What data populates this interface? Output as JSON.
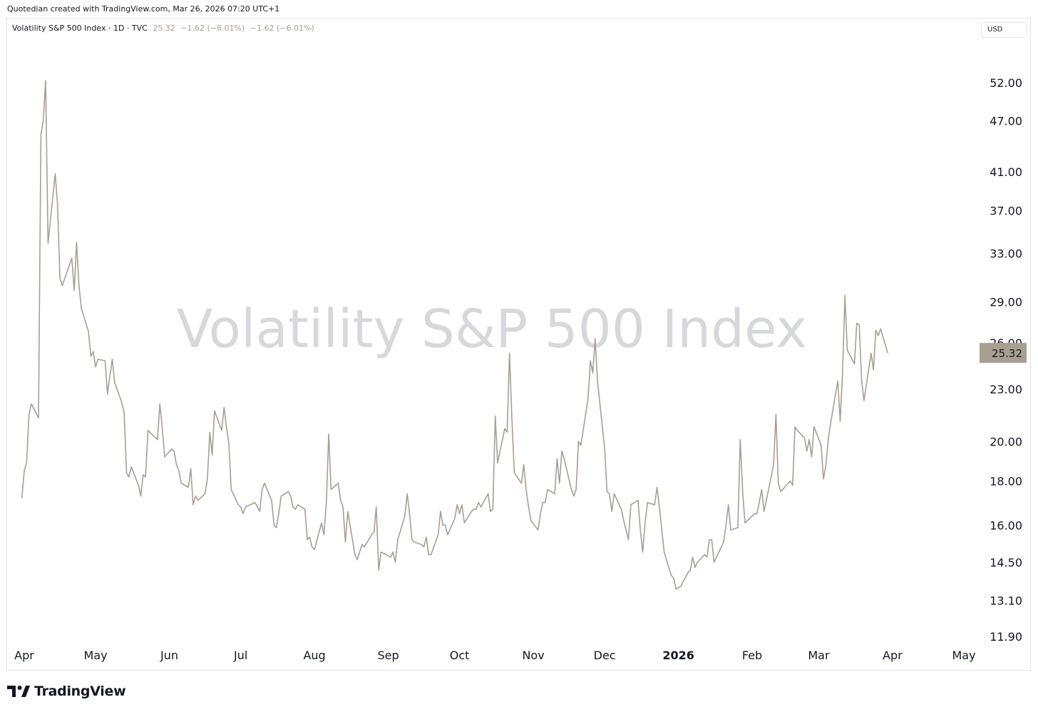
{
  "header": {
    "caption": "Quotedian created with TradingView.com, Mar 26, 2026 07:20 UTC+1"
  },
  "legend": {
    "symbol": "Volatility S&P 500 Index · 1D · TVC",
    "last": "25.32",
    "change1": "−1.62 (−6.01%)",
    "change2": "−1.62 (−6.01%)"
  },
  "currency": "USD",
  "watermark": "Volatility S&P 500 Index",
  "price_label": "25.32",
  "logo_text": "TradingView",
  "colors": {
    "line": "#a89e92",
    "price_tag": "#a89e92",
    "watermark": "#d6d8dc",
    "border": "#e0e3eb"
  },
  "chart_data": {
    "type": "line",
    "scale": "log",
    "grid": false,
    "y_ticks": [
      52.0,
      47.0,
      41.0,
      37.0,
      33.0,
      29.0,
      26.0,
      23.0,
      20.0,
      18.0,
      16.0,
      14.5,
      13.1,
      11.9
    ],
    "y_tick_labels": [
      "52.00",
      "47.00",
      "41.00",
      "37.00",
      "33.00",
      "29.00",
      "26.00",
      "23.00",
      "20.00",
      "18.00",
      "16.00",
      "14.50",
      "13.10",
      "11.90"
    ],
    "ylim": [
      11.7,
      60.0
    ],
    "x_labels": [
      "Apr",
      "May",
      "Jun",
      "Jul",
      "Aug",
      "Sep",
      "Oct",
      "Nov",
      "Dec",
      "2026",
      "Feb",
      "Mar",
      "Apr",
      "May"
    ],
    "x_label_bold": [
      false,
      false,
      false,
      false,
      false,
      false,
      false,
      false,
      false,
      true,
      false,
      false,
      false,
      false
    ],
    "x_label_dates": [
      "2025-04-01",
      "2025-05-01",
      "2025-06-01",
      "2025-07-01",
      "2025-08-01",
      "2025-09-01",
      "2025-10-01",
      "2025-11-01",
      "2025-12-01",
      "2026-01-01",
      "2026-02-01",
      "2026-03-01",
      "2026-04-01",
      "2026-05-01"
    ],
    "series": [
      {
        "values": [
          [
            "2025-03-31",
            17.2
          ],
          [
            "2025-04-01",
            18.5
          ],
          [
            "2025-04-02",
            18.9
          ],
          [
            "2025-04-03",
            21.5
          ],
          [
            "2025-04-04",
            22.1
          ],
          [
            "2025-04-07",
            21.3
          ],
          [
            "2025-04-08",
            45.3
          ],
          [
            "2025-04-09",
            47.0
          ],
          [
            "2025-04-10",
            52.3
          ],
          [
            "2025-04-11",
            33.9
          ],
          [
            "2025-04-14",
            40.8
          ],
          [
            "2025-04-15",
            37.6
          ],
          [
            "2025-04-16",
            30.9
          ],
          [
            "2025-04-17",
            30.3
          ],
          [
            "2025-04-21",
            32.6
          ],
          [
            "2025-04-22",
            29.9
          ],
          [
            "2025-04-23",
            34.0
          ],
          [
            "2025-04-24",
            30.4
          ],
          [
            "2025-04-25",
            28.5
          ],
          [
            "2025-04-28",
            26.8
          ],
          [
            "2025-04-29",
            25.1
          ],
          [
            "2025-04-30",
            25.4
          ],
          [
            "2025-05-01",
            24.4
          ],
          [
            "2025-05-02",
            24.9
          ],
          [
            "2025-05-05",
            24.8
          ],
          [
            "2025-05-06",
            22.7
          ],
          [
            "2025-05-07",
            23.8
          ],
          [
            "2025-05-08",
            24.9
          ],
          [
            "2025-05-09",
            23.4
          ],
          [
            "2025-05-12",
            22.2
          ],
          [
            "2025-05-13",
            21.6
          ],
          [
            "2025-05-14",
            18.4
          ],
          [
            "2025-05-15",
            18.2
          ],
          [
            "2025-05-16",
            18.7
          ],
          [
            "2025-05-19",
            17.8
          ],
          [
            "2025-05-20",
            17.3
          ],
          [
            "2025-05-21",
            18.3
          ],
          [
            "2025-05-22",
            18.2
          ],
          [
            "2025-05-23",
            20.6
          ],
          [
            "2025-05-27",
            20.1
          ],
          [
            "2025-05-28",
            22.1
          ],
          [
            "2025-05-29",
            20.8
          ],
          [
            "2025-05-30",
            19.2
          ],
          [
            "2025-06-02",
            19.6
          ],
          [
            "2025-06-03",
            19.5
          ],
          [
            "2025-06-04",
            18.8
          ],
          [
            "2025-06-05",
            18.5
          ],
          [
            "2025-06-06",
            17.9
          ],
          [
            "2025-06-09",
            17.7
          ],
          [
            "2025-06-10",
            18.6
          ],
          [
            "2025-06-11",
            16.9
          ],
          [
            "2025-06-12",
            17.3
          ],
          [
            "2025-06-13",
            17.1
          ],
          [
            "2025-06-16",
            17.4
          ],
          [
            "2025-06-17",
            18.1
          ],
          [
            "2025-06-18",
            20.5
          ],
          [
            "2025-06-19",
            19.3
          ],
          [
            "2025-06-20",
            21.7
          ],
          [
            "2025-06-23",
            20.6
          ],
          [
            "2025-06-24",
            21.9
          ],
          [
            "2025-06-25",
            20.8
          ],
          [
            "2025-06-26",
            19.9
          ],
          [
            "2025-06-27",
            17.6
          ],
          [
            "2025-06-30",
            16.9
          ],
          [
            "2025-07-01",
            16.8
          ],
          [
            "2025-07-02",
            16.5
          ],
          [
            "2025-07-03",
            16.8
          ],
          [
            "2025-07-07",
            17.0
          ],
          [
            "2025-07-08",
            16.8
          ],
          [
            "2025-07-09",
            16.6
          ],
          [
            "2025-07-10",
            17.6
          ],
          [
            "2025-07-11",
            17.9
          ],
          [
            "2025-07-14",
            17.1
          ],
          [
            "2025-07-15",
            16.0
          ],
          [
            "2025-07-16",
            15.9
          ],
          [
            "2025-07-17",
            16.5
          ],
          [
            "2025-07-18",
            17.3
          ],
          [
            "2025-07-21",
            17.5
          ],
          [
            "2025-07-22",
            17.3
          ],
          [
            "2025-07-23",
            16.8
          ],
          [
            "2025-07-24",
            16.7
          ],
          [
            "2025-07-25",
            16.9
          ],
          [
            "2025-07-28",
            16.7
          ],
          [
            "2025-07-29",
            15.4
          ],
          [
            "2025-07-30",
            15.5
          ],
          [
            "2025-07-31",
            15.1
          ],
          [
            "2025-08-01",
            15.0
          ],
          [
            "2025-08-04",
            16.1
          ],
          [
            "2025-08-05",
            15.6
          ],
          [
            "2025-08-06",
            17.0
          ],
          [
            "2025-08-07",
            20.4
          ],
          [
            "2025-08-08",
            17.6
          ],
          [
            "2025-08-11",
            17.9
          ],
          [
            "2025-08-12",
            17.1
          ],
          [
            "2025-08-13",
            16.8
          ],
          [
            "2025-08-14",
            15.3
          ],
          [
            "2025-08-15",
            16.6
          ],
          [
            "2025-08-18",
            14.8
          ],
          [
            "2025-08-19",
            14.6
          ],
          [
            "2025-08-20",
            14.9
          ],
          [
            "2025-08-21",
            15.2
          ],
          [
            "2025-08-22",
            15.1
          ],
          [
            "2025-08-25",
            15.6
          ],
          [
            "2025-08-26",
            15.7
          ],
          [
            "2025-08-27",
            16.8
          ],
          [
            "2025-08-28",
            14.2
          ],
          [
            "2025-08-29",
            14.9
          ],
          [
            "2025-09-02",
            14.7
          ],
          [
            "2025-09-03",
            14.9
          ],
          [
            "2025-09-04",
            14.5
          ],
          [
            "2025-09-05",
            15.4
          ],
          [
            "2025-09-08",
            16.4
          ],
          [
            "2025-09-09",
            17.4
          ],
          [
            "2025-09-10",
            16.5
          ],
          [
            "2025-09-11",
            15.4
          ],
          [
            "2025-09-12",
            15.3
          ],
          [
            "2025-09-15",
            15.2
          ],
          [
            "2025-09-16",
            15.1
          ],
          [
            "2025-09-17",
            15.5
          ],
          [
            "2025-09-18",
            14.8
          ],
          [
            "2025-09-19",
            14.8
          ],
          [
            "2025-09-22",
            15.6
          ],
          [
            "2025-09-23",
            16.6
          ],
          [
            "2025-09-24",
            16.0
          ],
          [
            "2025-09-25",
            16.0
          ],
          [
            "2025-09-26",
            15.6
          ],
          [
            "2025-09-29",
            16.3
          ],
          [
            "2025-09-30",
            16.9
          ],
          [
            "2025-10-01",
            16.5
          ],
          [
            "2025-10-02",
            16.9
          ],
          [
            "2025-10-03",
            16.1
          ],
          [
            "2025-10-06",
            16.6
          ],
          [
            "2025-10-07",
            16.7
          ],
          [
            "2025-10-08",
            16.7
          ],
          [
            "2025-10-09",
            17.0
          ],
          [
            "2025-10-10",
            16.8
          ],
          [
            "2025-10-13",
            17.4
          ],
          [
            "2025-10-14",
            16.6
          ],
          [
            "2025-10-15",
            16.7
          ],
          [
            "2025-10-16",
            21.4
          ],
          [
            "2025-10-17",
            18.9
          ],
          [
            "2025-10-20",
            20.7
          ],
          [
            "2025-10-21",
            20.5
          ],
          [
            "2025-10-22",
            25.3
          ],
          [
            "2025-10-23",
            21.3
          ],
          [
            "2025-10-24",
            18.4
          ],
          [
            "2025-10-27",
            17.9
          ],
          [
            "2025-10-28",
            18.8
          ],
          [
            "2025-10-29",
            17.6
          ],
          [
            "2025-10-30",
            16.8
          ],
          [
            "2025-10-31",
            16.2
          ],
          [
            "2025-11-03",
            15.8
          ],
          [
            "2025-11-04",
            16.5
          ],
          [
            "2025-11-05",
            17.0
          ],
          [
            "2025-11-06",
            17.0
          ],
          [
            "2025-11-07",
            17.6
          ],
          [
            "2025-11-10",
            17.4
          ],
          [
            "2025-11-11",
            19.1
          ],
          [
            "2025-11-12",
            17.9
          ],
          [
            "2025-11-13",
            19.5
          ],
          [
            "2025-11-14",
            19.1
          ],
          [
            "2025-11-17",
            17.6
          ],
          [
            "2025-11-18",
            17.3
          ],
          [
            "2025-11-19",
            17.6
          ],
          [
            "2025-11-20",
            20.0
          ],
          [
            "2025-11-21",
            19.8
          ],
          [
            "2025-11-24",
            22.4
          ],
          [
            "2025-11-25",
            24.8
          ],
          [
            "2025-11-26",
            24.0
          ],
          [
            "2025-11-27",
            26.3
          ],
          [
            "2025-11-28",
            23.5
          ],
          [
            "2025-12-01",
            19.6
          ],
          [
            "2025-12-02",
            17.5
          ],
          [
            "2025-12-03",
            17.4
          ],
          [
            "2025-12-04",
            16.6
          ],
          [
            "2025-12-05",
            17.4
          ],
          [
            "2025-12-08",
            16.7
          ],
          [
            "2025-12-09",
            16.2
          ],
          [
            "2025-12-10",
            15.8
          ],
          [
            "2025-12-11",
            15.4
          ],
          [
            "2025-12-12",
            16.9
          ],
          [
            "2025-12-15",
            17.1
          ],
          [
            "2025-12-16",
            15.8
          ],
          [
            "2025-12-17",
            14.9
          ],
          [
            "2025-12-18",
            16.1
          ],
          [
            "2025-12-19",
            17.0
          ],
          [
            "2025-12-22",
            16.9
          ],
          [
            "2025-12-23",
            17.7
          ],
          [
            "2025-12-24",
            16.8
          ],
          [
            "2025-12-26",
            14.9
          ],
          [
            "2025-12-29",
            14.0
          ],
          [
            "2025-12-30",
            13.9
          ],
          [
            "2025-12-31",
            13.5
          ],
          [
            "2026-01-02",
            13.6
          ],
          [
            "2026-01-05",
            14.1
          ],
          [
            "2026-01-06",
            14.2
          ],
          [
            "2026-01-07",
            14.7
          ],
          [
            "2026-01-08",
            14.3
          ],
          [
            "2026-01-09",
            14.5
          ],
          [
            "2026-01-12",
            14.8
          ],
          [
            "2026-01-13",
            14.7
          ],
          [
            "2026-01-14",
            15.4
          ],
          [
            "2026-01-15",
            15.4
          ],
          [
            "2026-01-16",
            14.5
          ],
          [
            "2026-01-20",
            15.3
          ],
          [
            "2026-01-21",
            16.0
          ],
          [
            "2026-01-22",
            16.9
          ],
          [
            "2026-01-23",
            15.8
          ],
          [
            "2026-01-26",
            15.9
          ],
          [
            "2026-01-27",
            20.1
          ],
          [
            "2026-01-28",
            17.5
          ],
          [
            "2026-01-29",
            16.1
          ],
          [
            "2026-01-30",
            16.2
          ],
          [
            "2026-02-02",
            16.5
          ],
          [
            "2026-02-03",
            16.5
          ],
          [
            "2026-02-04",
            17.0
          ],
          [
            "2026-02-05",
            17.6
          ],
          [
            "2026-02-06",
            16.6
          ],
          [
            "2026-02-09",
            18.2
          ],
          [
            "2026-02-10",
            18.8
          ],
          [
            "2026-02-11",
            21.5
          ],
          [
            "2026-02-12",
            17.9
          ],
          [
            "2026-02-13",
            17.5
          ],
          [
            "2026-02-17",
            18.0
          ],
          [
            "2026-02-18",
            17.8
          ],
          [
            "2026-02-19",
            20.8
          ],
          [
            "2026-02-20",
            20.6
          ],
          [
            "2026-02-23",
            20.2
          ],
          [
            "2026-02-24",
            19.5
          ],
          [
            "2026-02-25",
            20.1
          ],
          [
            "2026-02-26",
            19.2
          ],
          [
            "2026-02-27",
            20.8
          ],
          [
            "2026-03-02",
            19.8
          ],
          [
            "2026-03-03",
            18.1
          ],
          [
            "2026-03-04",
            18.8
          ],
          [
            "2026-03-05",
            20.1
          ],
          [
            "2026-03-06",
            21.0
          ],
          [
            "2026-03-09",
            23.5
          ],
          [
            "2026-03-10",
            21.1
          ],
          [
            "2026-03-11",
            24.0
          ],
          [
            "2026-03-12",
            29.5
          ],
          [
            "2026-03-13",
            25.5
          ],
          [
            "2026-03-16",
            24.6
          ],
          [
            "2026-03-17",
            27.4
          ],
          [
            "2026-03-18",
            27.3
          ],
          [
            "2026-03-19",
            23.6
          ],
          [
            "2026-03-20",
            22.3
          ],
          [
            "2026-03-23",
            25.3
          ],
          [
            "2026-03-24",
            24.2
          ],
          [
            "2026-03-25",
            26.9
          ],
          [
            "2026-03-26",
            26.5
          ],
          [
            "2026-03-27",
            27.0
          ],
          [
            "2026-03-30",
            25.32
          ]
        ]
      }
    ]
  }
}
